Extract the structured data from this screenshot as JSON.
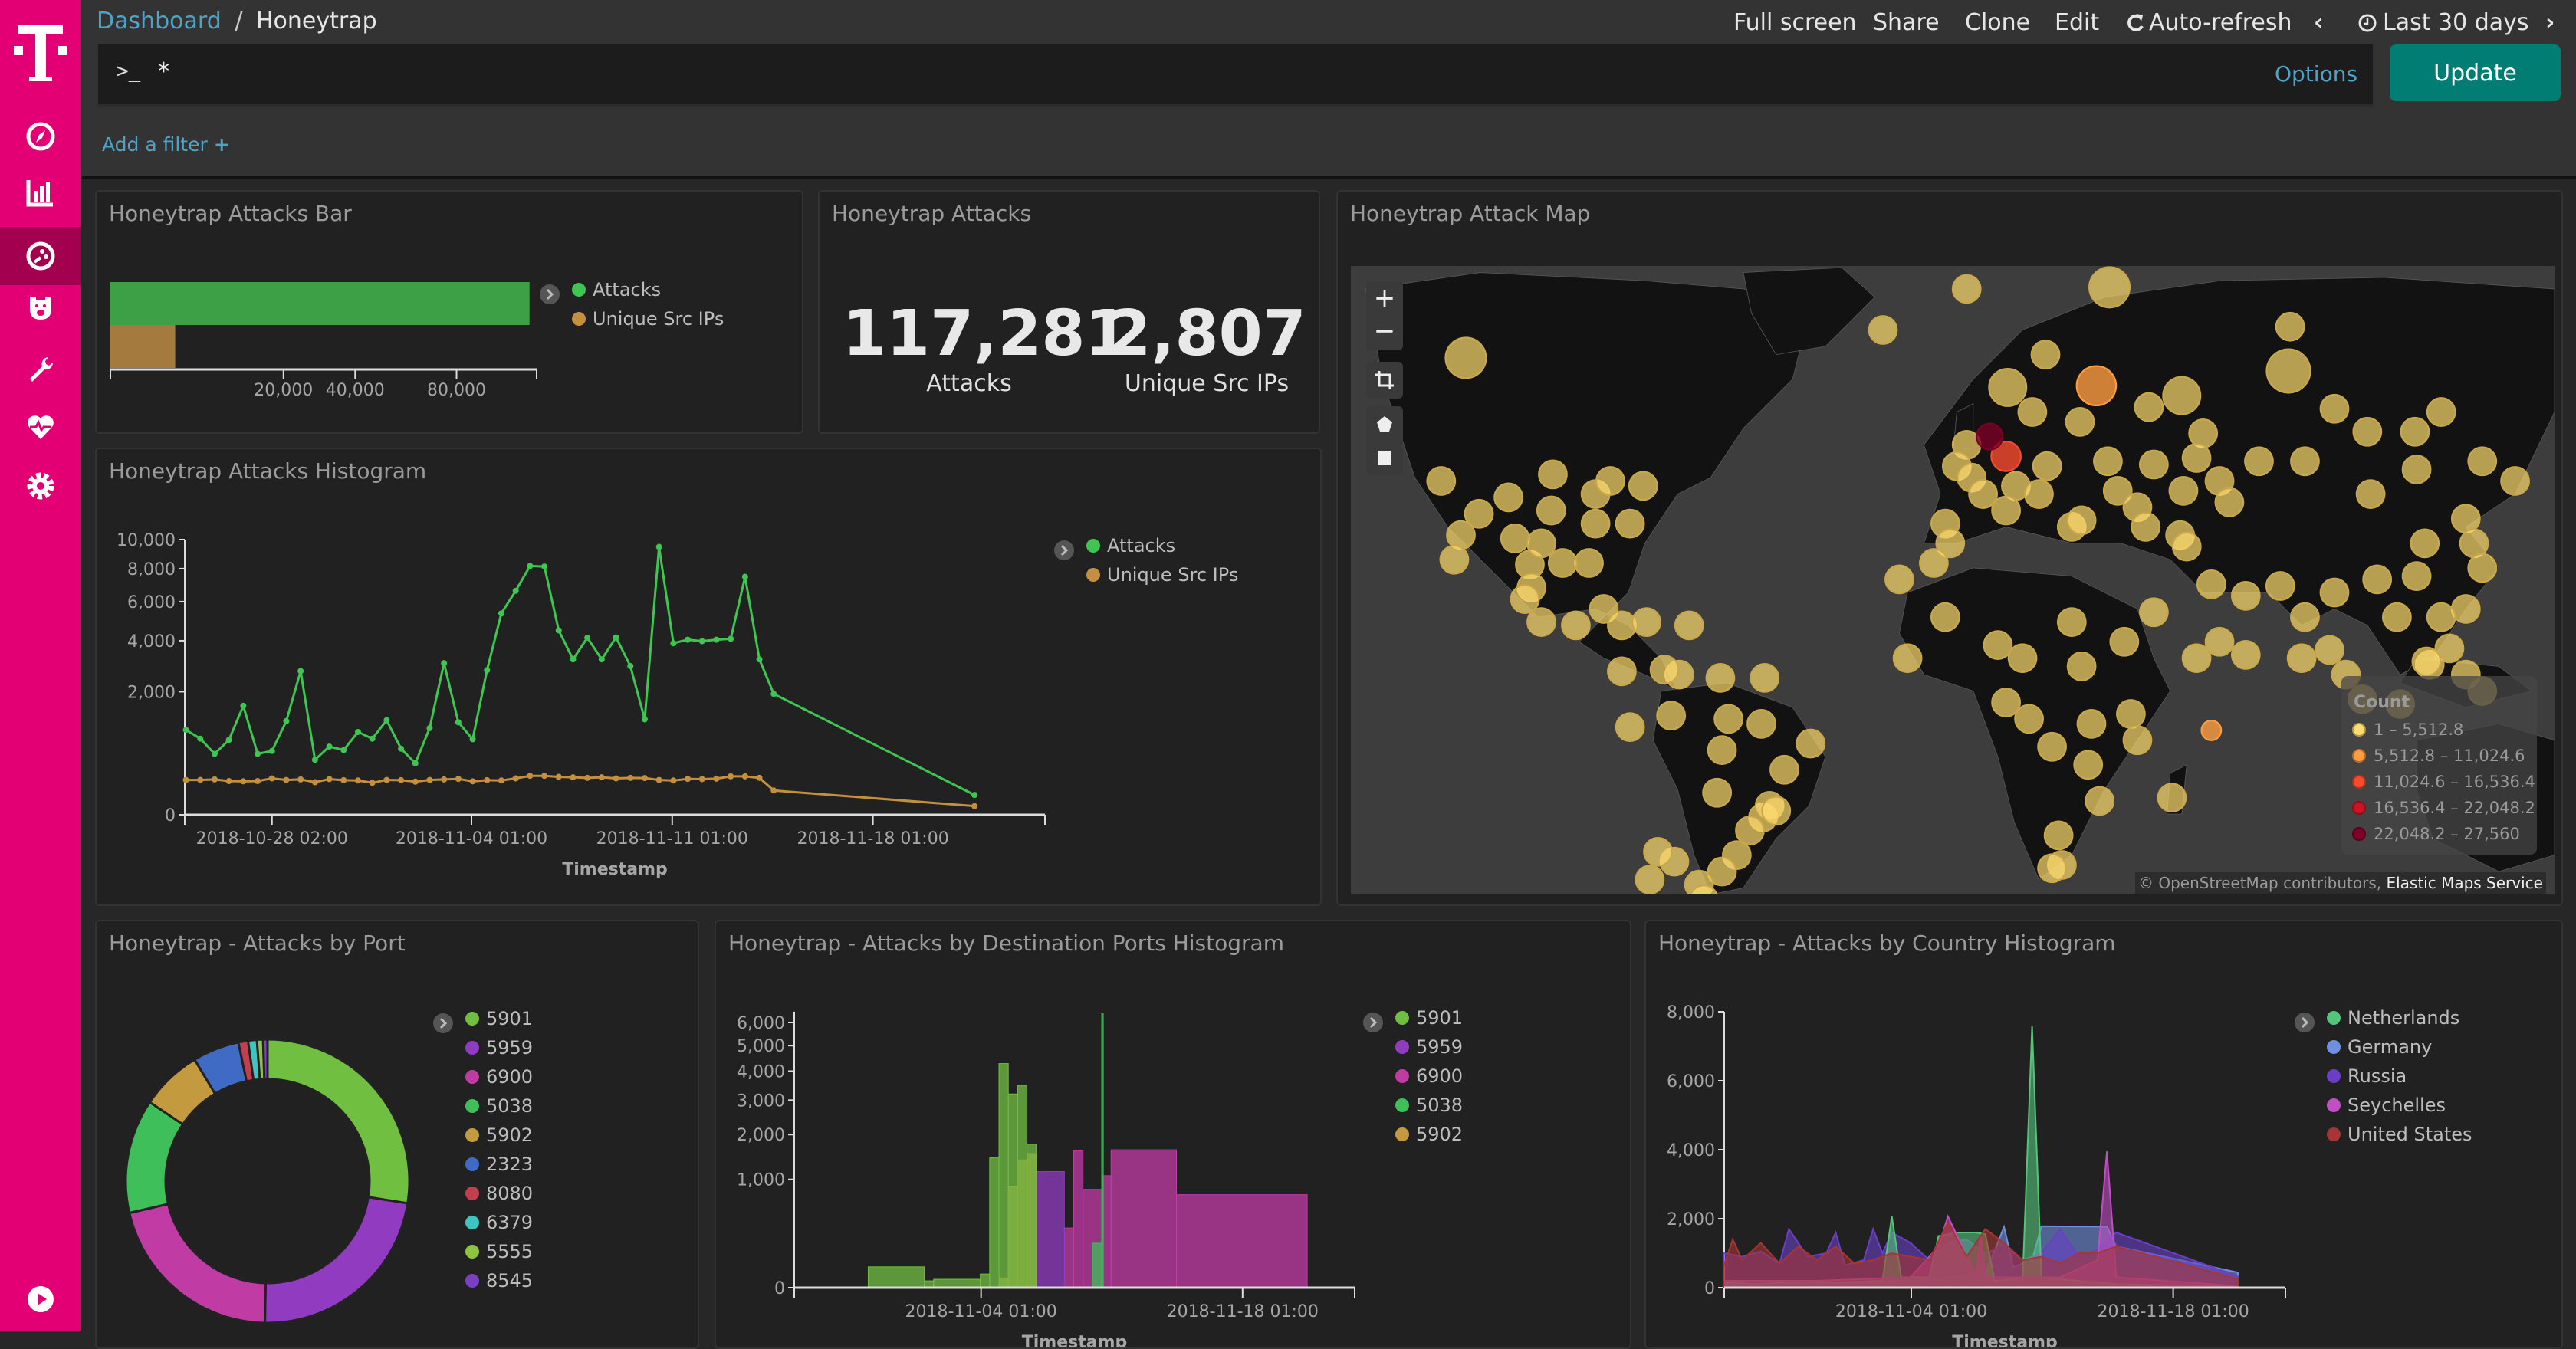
{
  "breadcrumb": {
    "parent": "Dashboard",
    "separator": "/",
    "current": "Honeytrap"
  },
  "top_menu": {
    "full_screen": "Full screen",
    "share": "Share",
    "clone": "Clone",
    "edit": "Edit",
    "auto_refresh": "Auto-refresh",
    "time_range": "Last 30 days"
  },
  "query": {
    "prompt": ">_",
    "value": "*",
    "options": "Options",
    "update": "Update"
  },
  "filter": {
    "add": "Add a filter",
    "plus": "+"
  },
  "sidebar": {
    "items": [
      "logo",
      "discover-compass-icon",
      "visualize-chart-icon",
      "dashboard-icon",
      "timelion-bear-icon",
      "dev-tools-wrench-icon",
      "monitoring-heart-icon",
      "management-gear-icon",
      "play-icon"
    ],
    "active": "dashboard-icon",
    "color": "#e20074"
  },
  "panels": {
    "bar": "Honeytrap Attacks Bar",
    "metric": "Honeytrap Attacks",
    "map": "Honeytrap Attack Map",
    "histogram": "Honeytrap Attacks Histogram",
    "port": "Honeytrap - Attacks by Port",
    "dest": "Honeytrap - Attacks by Destination Ports Histogram",
    "country": "Honeytrap - Attacks by Country Histogram"
  },
  "metric": {
    "attacks_value": "117,281",
    "attacks_label": "Attacks",
    "ips_value": "2,807",
    "ips_label": "Unique Src IPs"
  },
  "map": {
    "controls": [
      "+",
      "−"
    ],
    "legend_title": "Count",
    "legend": [
      {
        "label": "1 – 5,512.8",
        "color": "#fedc6e"
      },
      {
        "label": "5,512.8 – 11,024.6",
        "color": "#fe9d40"
      },
      {
        "label": "11,024.6 – 16,536.4",
        "color": "#f84b2d"
      },
      {
        "label": "16,536.4 – 22,048.2",
        "color": "#cf1221"
      },
      {
        "label": "22,048.2 – 27,560",
        "color": "#7d0027"
      }
    ],
    "attribution_a": "© OpenStreetMap contributors,",
    "attribution_b": "Elastic Maps Service"
  },
  "chart_data": [
    {
      "type": "bar",
      "orientation": "horizontal",
      "scale": "sqrt",
      "xlim": [
        0,
        120000
      ],
      "xticks": [
        20000,
        40000,
        80000
      ],
      "xtick_labels": [
        "20,000",
        "40,000",
        "80,000"
      ],
      "series": [
        {
          "name": "Attacks",
          "value": 117281,
          "color": "#3ea046"
        },
        {
          "name": "Unique Src IPs",
          "value": 2807,
          "color": "#a57a3f"
        }
      ],
      "legend": [
        {
          "name": "Attacks",
          "color": "#3fc552"
        },
        {
          "name": "Unique Src IPs",
          "color": "#c4903f"
        }
      ]
    },
    {
      "type": "line",
      "yscale": "sqrt",
      "ylim": [
        0,
        10000
      ],
      "yticks": [
        0,
        2000,
        4000,
        6000,
        8000,
        10000
      ],
      "ytick_labels": [
        "0",
        "2,000",
        "4,000",
        "6,000",
        "8,000",
        "10,000"
      ],
      "xlim": [
        "2018-10-25 01:00",
        "2018-11-24 01:00"
      ],
      "xticks": [
        "2018-10-28 02:00",
        "2018-11-04 01:00",
        "2018-11-11 01:00",
        "2018-11-18 01:00"
      ],
      "xlabel": "Timestamp",
      "x": [
        "2018-10-25 02:00",
        "2018-10-25 14:00",
        "2018-10-26 02:00",
        "2018-10-26 14:00",
        "2018-10-27 02:00",
        "2018-10-27 14:00",
        "2018-10-28 02:00",
        "2018-10-28 14:00",
        "2018-10-29 02:00",
        "2018-10-29 14:00",
        "2018-10-30 02:00",
        "2018-10-30 14:00",
        "2018-10-31 02:00",
        "2018-10-31 14:00",
        "2018-11-01 02:00",
        "2018-11-01 14:00",
        "2018-11-02 02:00",
        "2018-11-02 14:00",
        "2018-11-03 02:00",
        "2018-11-03 14:00",
        "2018-11-04 02:00",
        "2018-11-04 14:00",
        "2018-11-05 02:00",
        "2018-11-05 14:00",
        "2018-11-06 02:00",
        "2018-11-06 14:00",
        "2018-11-07 02:00",
        "2018-11-07 14:00",
        "2018-11-08 02:00",
        "2018-11-08 14:00",
        "2018-11-09 02:00",
        "2018-11-09 14:00",
        "2018-11-10 02:00",
        "2018-11-10 14:00",
        "2018-11-11 02:00",
        "2018-11-11 14:00",
        "2018-11-12 02:00",
        "2018-11-12 14:00",
        "2018-11-13 02:00",
        "2018-11-13 14:00",
        "2018-11-14 02:00",
        "2018-11-14 14:00",
        "2018-11-21 14:00"
      ],
      "series": [
        {
          "name": "Attacks",
          "color": "#3fc552",
          "values": [
            952,
            765,
            490,
            742,
            1566,
            490,
            538,
            1159,
            2728,
            400,
            614,
            553,
            906,
            765,
            1181,
            578,
            351,
            992,
            3037,
            1130,
            753,
            2762,
            5357,
            6623,
            8177,
            8140,
            4492,
            3191,
            4142,
            3191,
            4156,
            2921,
            1203,
            9475,
            3886,
            4047,
            3980,
            4047,
            4088,
            7480,
            3191,
            1930,
            52
          ]
        },
        {
          "name": "Unique Src IPs",
          "color": "#c4903f",
          "values": [
            160,
            160,
            165,
            150,
            148,
            150,
            175,
            160,
            165,
            140,
            168,
            158,
            155,
            135,
            160,
            158,
            145,
            160,
            165,
            170,
            148,
            158,
            155,
            175,
            200,
            200,
            190,
            185,
            180,
            185,
            175,
            180,
            178,
            160,
            155,
            170,
            168,
            172,
            195,
            195,
            180,
            78,
            10
          ]
        }
      ]
    },
    {
      "type": "pie",
      "donut": true,
      "unit": "percent",
      "slices": [
        {
          "name": "5901",
          "value": 27.5,
          "color": "#70bf41"
        },
        {
          "name": "5959",
          "value": 22.8,
          "color": "#913bc0"
        },
        {
          "name": "6900",
          "value": 21.1,
          "color": "#c13ba5"
        },
        {
          "name": "5038",
          "value": 13.0,
          "color": "#3fbf5a"
        },
        {
          "name": "5902",
          "value": 7.0,
          "color": "#c49a3f"
        },
        {
          "name": "2323",
          "value": 5.3,
          "color": "#3f6bc4"
        },
        {
          "name": "8080",
          "value": 1.1,
          "color": "#c43f4e"
        },
        {
          "name": "6379",
          "value": 1.0,
          "color": "#3fc4c0"
        },
        {
          "name": "5555",
          "value": 0.7,
          "color": "#8cc43f"
        },
        {
          "name": "8545",
          "value": 0.5,
          "color": "#7a3fc4"
        }
      ]
    },
    {
      "type": "area",
      "stepped": true,
      "yscale": "sqrt",
      "ylim": [
        0,
        6500
      ],
      "yticks": [
        0,
        1000,
        2000,
        3000,
        4000,
        5000,
        6000
      ],
      "ytick_labels": [
        "0",
        "1,000",
        "2,000",
        "3,000",
        "4,000",
        "5,000",
        "6,000"
      ],
      "xlim": [
        "2018-10-25 01:00",
        "2018-11-24 01:00"
      ],
      "xticks": [
        "2018-11-04 01:00",
        "2018-11-18 01:00"
      ],
      "xlabel": "Timestamp",
      "series": [
        {
          "name": "5901",
          "color": "#70bf41",
          "segments": [
            [
              "2018-10-29 00:00",
              "2018-11-01 00:00",
              37
            ],
            [
              "2018-11-01 00:00",
              "2018-11-01 12:00",
              4
            ],
            [
              "2018-11-01 12:00",
              "2018-11-04 00:00",
              6
            ],
            [
              "2018-11-04 00:00",
              "2018-11-04 12:00",
              16
            ],
            [
              "2018-11-04 12:00",
              "2018-11-05 00:00",
              1438
            ],
            [
              "2018-11-05 00:00",
              "2018-11-05 12:00",
              4285
            ],
            [
              "2018-11-05 12:00",
              "2018-11-06 00:00",
              3202
            ],
            [
              "2018-11-06 00:00",
              "2018-11-06 12:00",
              3477
            ],
            [
              "2018-11-06 12:00",
              "2018-11-07 00:00",
              1756
            ]
          ]
        },
        {
          "name": "5959",
          "color": "#913bc0",
          "segments": [
            [
              "2018-11-07 00:00",
              "2018-11-08 12:00",
              1150
            ]
          ]
        },
        {
          "name": "6900",
          "color": "#c13ba5",
          "segments": [
            [
              "2018-11-08 12:00",
              "2018-11-09 00:00",
              304
            ],
            [
              "2018-11-09 00:00",
              "2018-11-09 12:00",
              1596
            ],
            [
              "2018-11-09 12:00",
              "2018-11-10 12:00",
              825
            ],
            [
              "2018-11-10 12:00",
              "2018-11-11 00:00",
              1070
            ],
            [
              "2018-11-11 00:00",
              "2018-11-14 12:00",
              1622
            ],
            [
              "2018-11-14 12:00",
              "2018-11-21 12:00",
              738
            ]
          ]
        },
        {
          "name": "5038",
          "color": "#3fbf5a",
          "segments": [
            [
              "2018-11-10 00:00",
              "2018-11-10 12:00",
              169
            ],
            [
              "2018-11-10 12:00",
              "2018-11-10 14:00",
              6400
            ]
          ]
        },
        {
          "name": "5902",
          "color": "#c49a3f",
          "segments": [
            [
              "2018-11-05 00:00",
              "2018-11-05 12:00",
              8
            ],
            [
              "2018-11-05 12:00",
              "2018-11-06 00:00",
              880
            ],
            [
              "2018-11-06 00:00",
              "2018-11-06 12:00",
              1393
            ],
            [
              "2018-11-06 12:00",
              "2018-11-07 00:00",
              1533
            ]
          ]
        }
      ]
    },
    {
      "type": "area",
      "ylim": [
        0,
        8000
      ],
      "yticks": [
        0,
        2000,
        4000,
        6000,
        8000
      ],
      "ytick_labels": [
        "0",
        "2,000",
        "4,000",
        "6,000",
        "8,000"
      ],
      "xlim": [
        "2018-10-25 01:00",
        "2018-11-24 01:00"
      ],
      "xticks": [
        "2018-11-04 01:00",
        "2018-11-18 01:00"
      ],
      "xlabel": "Timestamp",
      "series": [
        {
          "name": "Netherlands",
          "color": "#54c47a",
          "points": [
            [
              "2018-10-25 00:00",
              150
            ],
            [
              "2018-10-27 00:00",
              100
            ],
            [
              "2018-10-29 00:00",
              200
            ],
            [
              "2018-10-31 00:00",
              150
            ],
            [
              "2018-11-02 12:00",
              200
            ],
            [
              "2018-11-03 00:00",
              2070
            ],
            [
              "2018-11-03 12:00",
              300
            ],
            [
              "2018-11-05 00:00",
              300
            ],
            [
              "2018-11-05 12:00",
              1500
            ],
            [
              "2018-11-06 12:00",
              1600
            ],
            [
              "2018-11-07 12:00",
              1600
            ],
            [
              "2018-11-08 00:00",
              1550
            ],
            [
              "2018-11-08 12:00",
              200
            ],
            [
              "2018-11-10 00:00",
              300
            ],
            [
              "2018-11-10 12:00",
              7580
            ],
            [
              "2018-11-11 00:00",
              300
            ],
            [
              "2018-11-13 00:00",
              200
            ],
            [
              "2018-11-15 00:00",
              100
            ],
            [
              "2018-11-21 12:00",
              50
            ]
          ]
        },
        {
          "name": "Germany",
          "color": "#6f8fdf",
          "points": [
            [
              "2018-10-25 00:00",
              100
            ],
            [
              "2018-10-30 00:00",
              150
            ],
            [
              "2018-11-04 00:00",
              200
            ],
            [
              "2018-11-08 00:00",
              400
            ],
            [
              "2018-11-09 00:00",
              1760
            ],
            [
              "2018-11-09 12:00",
              600
            ],
            [
              "2018-11-10 12:00",
              800
            ],
            [
              "2018-11-11 00:00",
              1780
            ],
            [
              "2018-11-14 12:00",
              1770
            ],
            [
              "2018-11-15 00:00",
              1200
            ],
            [
              "2018-11-21 12:00",
              440
            ]
          ]
        },
        {
          "name": "Russia",
          "color": "#6a3fc5",
          "points": [
            [
              "2018-10-25 00:00",
              1000
            ],
            [
              "2018-10-26 00:00",
              900
            ],
            [
              "2018-10-27 00:00",
              1050
            ],
            [
              "2018-10-28 00:00",
              700
            ],
            [
              "2018-10-28 12:00",
              1700
            ],
            [
              "2018-10-29 12:00",
              900
            ],
            [
              "2018-10-30 12:00",
              1000
            ],
            [
              "2018-10-31 00:00",
              1600
            ],
            [
              "2018-10-31 12:00",
              650
            ],
            [
              "2018-11-01 12:00",
              800
            ],
            [
              "2018-11-02 00:00",
              1700
            ],
            [
              "2018-11-02 12:00",
              1000
            ],
            [
              "2018-11-03 00:00",
              1600
            ],
            [
              "2018-11-04 00:00",
              1300
            ],
            [
              "2018-11-05 00:00",
              800
            ],
            [
              "2018-11-06 00:00",
              1300
            ],
            [
              "2018-11-07 00:00",
              1400
            ],
            [
              "2018-11-08 00:00",
              1000
            ],
            [
              "2018-11-09 00:00",
              1200
            ],
            [
              "2018-11-10 00:00",
              800
            ],
            [
              "2018-11-11 00:00",
              1000
            ],
            [
              "2018-11-12 00:00",
              1700
            ],
            [
              "2018-11-13 00:00",
              900
            ],
            [
              "2018-11-14 00:00",
              1100
            ],
            [
              "2018-11-15 00:00",
              1600
            ],
            [
              "2018-11-21 12:00",
              330
            ]
          ]
        },
        {
          "name": "Seychelles",
          "color": "#c04fc4",
          "points": [
            [
              "2018-10-25 00:00",
              200
            ],
            [
              "2018-10-30 00:00",
              200
            ],
            [
              "2018-11-04 00:00",
              300
            ],
            [
              "2018-11-05 12:00",
              1200
            ],
            [
              "2018-11-06 00:00",
              2070
            ],
            [
              "2018-11-06 12:00",
              1500
            ],
            [
              "2018-11-07 12:00",
              300
            ],
            [
              "2018-11-07 18:00",
              1500
            ],
            [
              "2018-11-08 00:00",
              300
            ],
            [
              "2018-11-12 00:00",
              300
            ],
            [
              "2018-11-14 00:00",
              800
            ],
            [
              "2018-11-14 12:00",
              3950
            ],
            [
              "2018-11-15 00:00",
              300
            ],
            [
              "2018-11-21 12:00",
              50
            ]
          ]
        },
        {
          "name": "United States",
          "color": "#a83535",
          "points": [
            [
              "2018-10-25 00:00",
              600
            ],
            [
              "2018-10-25 12:00",
              1400
            ],
            [
              "2018-10-26 00:00",
              800
            ],
            [
              "2018-10-27 00:00",
              1300
            ],
            [
              "2018-10-28 00:00",
              700
            ],
            [
              "2018-10-29 00:00",
              1200
            ],
            [
              "2018-10-30 00:00",
              800
            ],
            [
              "2018-10-31 00:00",
              1200
            ],
            [
              "2018-11-01 00:00",
              700
            ],
            [
              "2018-11-02 00:00",
              800
            ],
            [
              "2018-11-03 00:00",
              1000
            ],
            [
              "2018-11-04 00:00",
              900
            ],
            [
              "2018-11-05 00:00",
              800
            ],
            [
              "2018-11-06 00:00",
              1900
            ],
            [
              "2018-11-07 00:00",
              900
            ],
            [
              "2018-11-08 00:00",
              1700
            ],
            [
              "2018-11-09 00:00",
              1300
            ],
            [
              "2018-11-10 00:00",
              800
            ],
            [
              "2018-11-11 00:00",
              900
            ],
            [
              "2018-11-12 00:00",
              700
            ],
            [
              "2018-11-13 00:00",
              1000
            ],
            [
              "2018-11-14 00:00",
              1000
            ],
            [
              "2018-11-15 00:00",
              1200
            ],
            [
              "2018-11-21 12:00",
              250
            ]
          ]
        }
      ]
    }
  ]
}
